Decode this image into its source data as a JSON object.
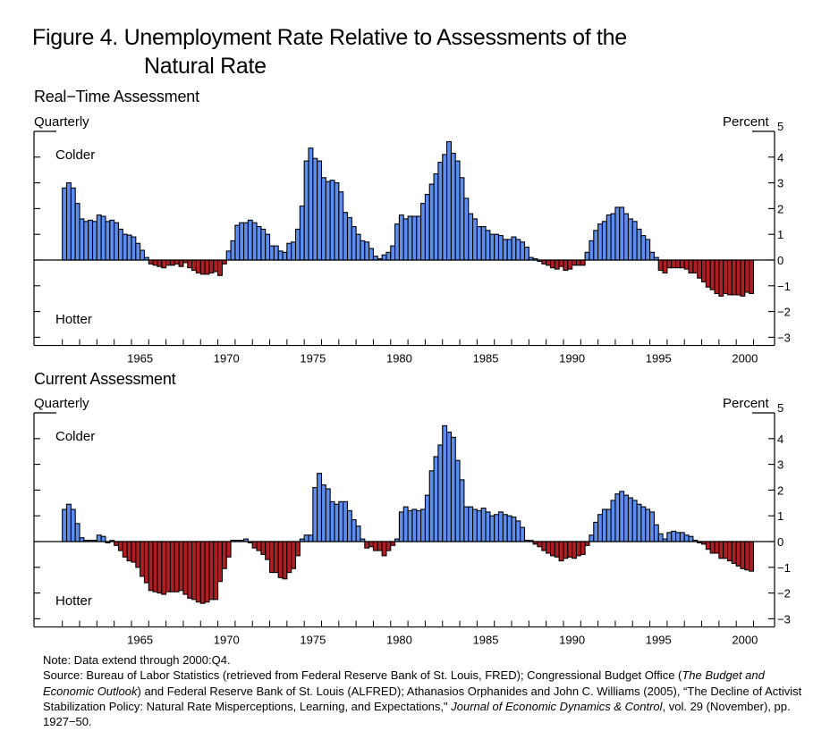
{
  "title_line1": "Figure 4. Unemployment Rate Relative to Assessments of the",
  "title_line2": "Natural Rate",
  "colors": {
    "positive": "#5b8ef0",
    "negative": "#b01e24",
    "outline": "#000000"
  },
  "note": {
    "line1": "Note:   Data extend through 2000:Q4.",
    "source_a": "Source: Bureau of Labor Statistics (retrieved from Federal Reserve Bank of St. Louis, FRED); Congressional Budget Office (",
    "source_b_italic": "The Budget and Economic Outlook",
    "source_c": ") and Federal Reserve Bank of St. Louis (ALFRED); Athanasios Orphanides and John C. Williams (2005), “The Decline of Activist Stabilization Policy: Natural Rate Misperceptions, Learning, and Expectations,\" ",
    "source_d_italic": "Journal of Economic Dynamics & Control",
    "source_e": ", vol. 29 (November), pp. 1927−50."
  },
  "chart_data": [
    {
      "type": "bar",
      "title": "Real−Time Assessment",
      "frequency_label": "Quarterly",
      "ylabel": "Percent",
      "upper_annotation": "Colder",
      "lower_annotation": "Hotter",
      "ylim": [
        -3.3,
        5
      ],
      "yticks": [
        "5",
        "4",
        "3",
        "2",
        "1",
        "0",
        "−1",
        "−2",
        "−3"
      ],
      "ytick_values": [
        5,
        4,
        3,
        2,
        1,
        0,
        -1,
        -2,
        -3
      ],
      "xticks": [
        "1965",
        "1970",
        "1975",
        "1980",
        "1985",
        "1990",
        "1995",
        "2000"
      ],
      "x_start": "1961:Q1",
      "x_end": "2000:Q4",
      "values": [
        2.8,
        3.0,
        2.8,
        2.2,
        1.6,
        1.5,
        1.55,
        1.5,
        1.75,
        1.7,
        1.5,
        1.55,
        1.45,
        1.2,
        1.0,
        0.97,
        0.9,
        0.65,
        0.38,
        0.1,
        -0.15,
        -0.2,
        -0.25,
        -0.3,
        -0.2,
        -0.2,
        -0.15,
        -0.25,
        -0.1,
        -0.3,
        -0.4,
        -0.5,
        -0.55,
        -0.55,
        -0.5,
        -0.45,
        -0.6,
        -0.15,
        0.35,
        0.75,
        1.35,
        1.45,
        1.45,
        1.55,
        1.45,
        1.3,
        1.2,
        1.0,
        0.55,
        0.55,
        0.35,
        0.3,
        0.65,
        0.7,
        1.2,
        2.1,
        3.85,
        4.35,
        3.95,
        3.85,
        3.2,
        3.05,
        3.1,
        3.0,
        2.65,
        1.85,
        1.65,
        1.3,
        1.0,
        0.75,
        0.7,
        0.45,
        0.15,
        0.05,
        0.2,
        0.3,
        0.55,
        1.4,
        1.75,
        1.6,
        1.7,
        1.7,
        1.7,
        2.2,
        2.55,
        2.95,
        3.35,
        3.8,
        4.1,
        4.6,
        4.15,
        3.85,
        3.2,
        2.4,
        1.8,
        1.6,
        1.3,
        1.3,
        1.15,
        1.0,
        1.0,
        0.95,
        0.8,
        0.8,
        0.9,
        0.8,
        0.7,
        0.5,
        0.1,
        0.05,
        -0.05,
        -0.15,
        -0.2,
        -0.3,
        -0.35,
        -0.25,
        -0.4,
        -0.35,
        -0.2,
        -0.2,
        -0.2,
        0.3,
        0.75,
        1.15,
        1.4,
        1.5,
        1.75,
        1.8,
        2.05,
        2.05,
        1.8,
        1.6,
        1.5,
        1.2,
        0.95,
        0.8,
        0.3,
        0.1,
        -0.4,
        -0.5,
        -0.3,
        -0.3,
        -0.3,
        -0.3,
        -0.35,
        -0.5,
        -0.5,
        -0.7,
        -0.85,
        -1.05,
        -1.15,
        -1.3,
        -1.4,
        -1.3,
        -1.35,
        -1.35,
        -1.35,
        -1.4,
        -1.25,
        -1.3
      ]
    },
    {
      "type": "bar",
      "title": "Current Assessment",
      "frequency_label": "Quarterly",
      "ylabel": "Percent",
      "upper_annotation": "Colder",
      "lower_annotation": "Hotter",
      "ylim": [
        -3.3,
        5
      ],
      "yticks": [
        "5",
        "4",
        "3",
        "2",
        "1",
        "0",
        "−1",
        "−2",
        "−3"
      ],
      "ytick_values": [
        5,
        4,
        3,
        2,
        1,
        0,
        -1,
        -2,
        -3
      ],
      "xticks": [
        "1965",
        "1970",
        "1975",
        "1980",
        "1985",
        "1990",
        "1995",
        "2000"
      ],
      "x_start": "1961:Q1",
      "x_end": "2000:Q4",
      "values": [
        1.25,
        1.45,
        1.25,
        0.7,
        0.15,
        0.05,
        0.05,
        0.05,
        0.25,
        0.2,
        -0.05,
        0.0,
        -0.15,
        -0.35,
        -0.6,
        -0.75,
        -0.8,
        -1.0,
        -1.35,
        -1.6,
        -1.9,
        -1.95,
        -2.0,
        -2.05,
        -1.95,
        -1.95,
        -1.95,
        -1.9,
        -2.05,
        -2.2,
        -2.25,
        -2.35,
        -2.4,
        -2.35,
        -2.25,
        -2.25,
        -1.55,
        -1.05,
        -0.6,
        0.05,
        0.05,
        0.05,
        0.1,
        -0.05,
        -0.25,
        -0.35,
        -0.5,
        -0.7,
        -1.2,
        -1.2,
        -1.4,
        -1.45,
        -1.2,
        -1.05,
        -0.55,
        0.1,
        0.25,
        0.25,
        2.1,
        2.65,
        2.2,
        2.05,
        1.55,
        1.45,
        1.55,
        1.55,
        1.2,
        0.85,
        0.6,
        0.1,
        -0.25,
        -0.2,
        -0.35,
        -0.35,
        -0.55,
        -0.35,
        -0.15,
        0.1,
        1.15,
        1.35,
        1.2,
        1.25,
        1.2,
        1.25,
        1.8,
        2.75,
        3.3,
        3.75,
        4.5,
        4.25,
        4.05,
        3.15,
        2.4,
        1.35,
        1.35,
        1.25,
        1.2,
        1.3,
        1.15,
        1.0,
        1.05,
        1.15,
        1.05,
        1.0,
        0.95,
        0.8,
        0.55,
        0.05,
        0.0,
        -0.1,
        -0.2,
        -0.35,
        -0.45,
        -0.55,
        -0.6,
        -0.75,
        -0.65,
        -0.6,
        -0.65,
        -0.55,
        -0.5,
        -0.15,
        0.25,
        0.75,
        1.05,
        1.25,
        1.25,
        1.6,
        1.85,
        1.95,
        1.8,
        1.7,
        1.6,
        1.45,
        1.35,
        1.25,
        1.15,
        0.65,
        0.3,
        0.1,
        0.35,
        0.4,
        0.35,
        0.35,
        0.25,
        0.2,
        0.05,
        -0.05,
        -0.1,
        -0.3,
        -0.45,
        -0.45,
        -0.65,
        -0.65,
        -0.75,
        -0.85,
        -0.95,
        -1.05,
        -1.1,
        -1.15
      ]
    }
  ]
}
